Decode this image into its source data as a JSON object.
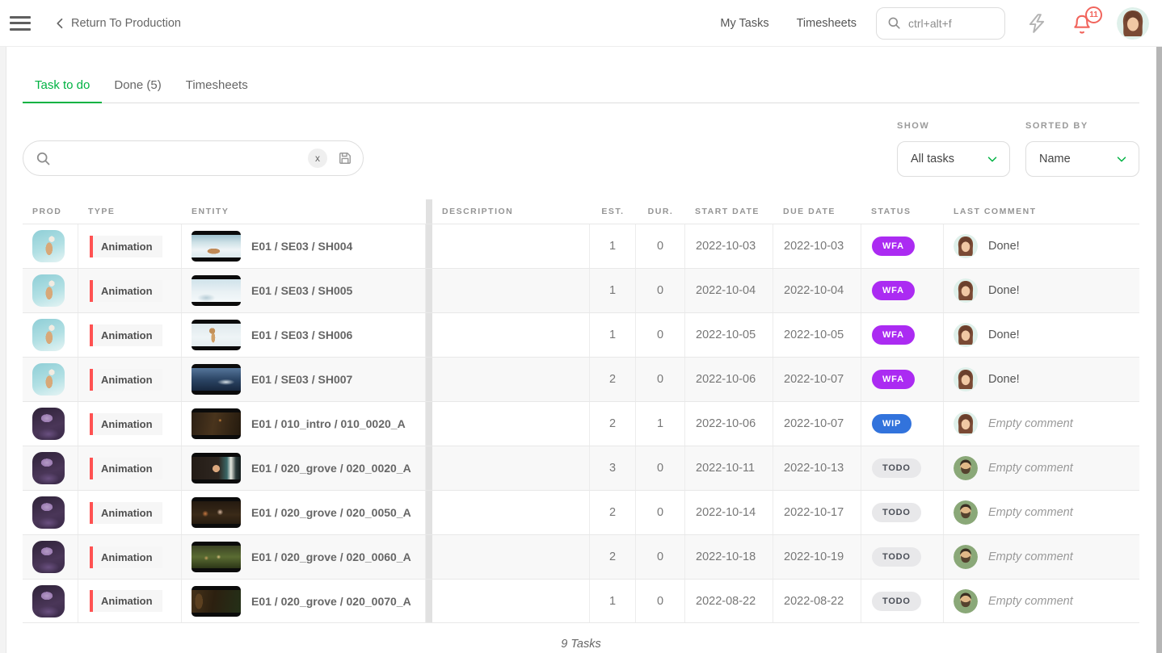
{
  "topbar": {
    "back_label": "Return To Production",
    "nav_links": [
      "My Tasks",
      "Timesheets"
    ],
    "search_placeholder": "ctrl+alt+f",
    "notification_count": "11"
  },
  "tabs": [
    {
      "label": "Task to do",
      "active": true
    },
    {
      "label": "Done (5)",
      "active": false
    },
    {
      "label": "Timesheets",
      "active": false
    }
  ],
  "filters": {
    "search_value": "",
    "clear_label": "x",
    "show_label": "SHOW",
    "show_value": "All tasks",
    "sorted_by_label": "SORTED BY",
    "sorted_by_value": "Name"
  },
  "table": {
    "columns": [
      "PROD",
      "TYPE",
      "ENTITY",
      "DESCRIPTION",
      "EST.",
      "DUR.",
      "START DATE",
      "DUE DATE",
      "STATUS",
      "LAST COMMENT"
    ],
    "rows": [
      {
        "prod_style": "teal-llama",
        "type": "Animation",
        "thumb_style": "snow-fox",
        "entity": "E01 / SE03 / SH004",
        "description": "",
        "est": "1",
        "dur": "0",
        "start_date": "2022-10-03",
        "due_date": "2022-10-03",
        "status": "WFA",
        "commenter_avatar": "woman",
        "comment": "Done!"
      },
      {
        "prod_style": "teal-llama",
        "type": "Animation",
        "thumb_style": "snow-landscape",
        "entity": "E01 / SE03 / SH005",
        "description": "",
        "est": "1",
        "dur": "0",
        "start_date": "2022-10-04",
        "due_date": "2022-10-04",
        "status": "WFA",
        "commenter_avatar": "woman",
        "comment": "Done!"
      },
      {
        "prod_style": "teal-llama",
        "type": "Animation",
        "thumb_style": "snow-giraffe",
        "entity": "E01 / SE03 / SH006",
        "description": "",
        "est": "1",
        "dur": "0",
        "start_date": "2022-10-05",
        "due_date": "2022-10-05",
        "status": "WFA",
        "commenter_avatar": "woman",
        "comment": "Done!"
      },
      {
        "prod_style": "teal-llama",
        "type": "Animation",
        "thumb_style": "ocean-cliff",
        "entity": "E01 / SE03 / SH007",
        "description": "",
        "est": "2",
        "dur": "0",
        "start_date": "2022-10-06",
        "due_date": "2022-10-07",
        "status": "WFA",
        "commenter_avatar": "woman",
        "comment": "Done!"
      },
      {
        "prod_style": "purple-forest",
        "type": "Animation",
        "thumb_style": "forest-intro",
        "entity": "E01 / 010_intro / 010_0020_A",
        "description": "",
        "est": "2",
        "dur": "1",
        "start_date": "2022-10-06",
        "due_date": "2022-10-07",
        "status": "WIP",
        "commenter_avatar": "woman",
        "comment": "Empty comment"
      },
      {
        "prod_style": "purple-forest",
        "type": "Animation",
        "thumb_style": "grove-girl",
        "entity": "E01 / 020_grove / 020_0020_A",
        "description": "",
        "est": "3",
        "dur": "0",
        "start_date": "2022-10-11",
        "due_date": "2022-10-13",
        "status": "TODO",
        "commenter_avatar": "man",
        "comment": "Empty comment"
      },
      {
        "prod_style": "purple-forest",
        "type": "Animation",
        "thumb_style": "grove-duo",
        "entity": "E01 / 020_grove / 020_0050_A",
        "description": "",
        "est": "2",
        "dur": "0",
        "start_date": "2022-10-14",
        "due_date": "2022-10-17",
        "status": "TODO",
        "commenter_avatar": "man",
        "comment": "Empty comment"
      },
      {
        "prod_style": "purple-forest",
        "type": "Animation",
        "thumb_style": "grove-group",
        "entity": "E01 / 020_grove / 020_0060_A",
        "description": "",
        "est": "2",
        "dur": "0",
        "start_date": "2022-10-18",
        "due_date": "2022-10-19",
        "status": "TODO",
        "commenter_avatar": "man",
        "comment": "Empty comment"
      },
      {
        "prod_style": "purple-forest",
        "type": "Animation",
        "thumb_style": "grove-tree",
        "entity": "E01 / 020_grove / 020_0070_A",
        "description": "",
        "est": "1",
        "dur": "0",
        "start_date": "2022-08-22",
        "due_date": "2022-08-22",
        "status": "TODO",
        "commenter_avatar": "man",
        "comment": "Empty comment"
      }
    ]
  },
  "footer": {
    "tasks_count": "9 Tasks"
  },
  "colors": {
    "accent_green": "#00b242",
    "type_tag_red": "#ff5252",
    "notification_red": "#f1645c",
    "status": {
      "WFA": {
        "bg": "#ab2bf2",
        "text": "#ffffff"
      },
      "WIP": {
        "bg": "#3273dc",
        "text": "#ffffff"
      },
      "TODO": {
        "bg": "#e8e8ea",
        "text": "#4a4e57"
      }
    }
  }
}
